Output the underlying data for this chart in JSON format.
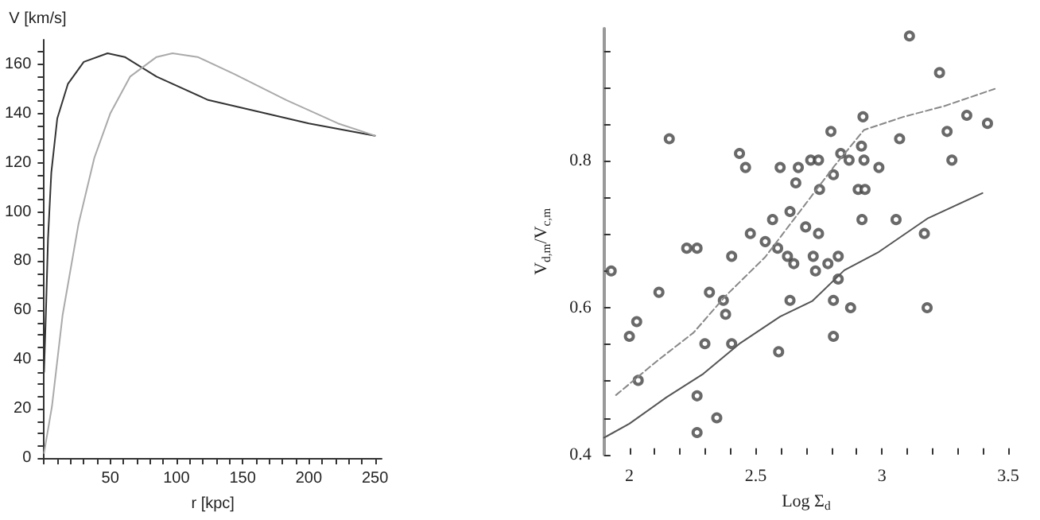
{
  "chart_data": [
    {
      "type": "line",
      "xlabel": "r [kpc]",
      "ylabel": "V [km/s]",
      "marker": "none",
      "line_style": "solid",
      "grid": false,
      "xlim": [
        0,
        255
      ],
      "ylim": [
        0,
        170
      ],
      "xticks": [
        {
          "value": 0,
          "label": null
        },
        {
          "value": 10,
          "label": null
        },
        {
          "value": 20,
          "label": null
        },
        {
          "value": 30,
          "label": null
        },
        {
          "value": 40,
          "label": null
        },
        50,
        {
          "value": 60,
          "label": null
        },
        {
          "value": 70,
          "label": null
        },
        {
          "value": 80,
          "label": null
        },
        {
          "value": 90,
          "label": null
        },
        100,
        {
          "value": 110,
          "label": null
        },
        {
          "value": 120,
          "label": null
        },
        {
          "value": 130,
          "label": null
        },
        {
          "value": 140,
          "label": null
        },
        150,
        {
          "value": 160,
          "label": null
        },
        {
          "value": 170,
          "label": null
        },
        {
          "value": 180,
          "label": null
        },
        {
          "value": 190,
          "label": null
        },
        200,
        {
          "value": 210,
          "label": null
        },
        {
          "value": 220,
          "label": null
        },
        {
          "value": 230,
          "label": null
        },
        {
          "value": 240,
          "label": null
        },
        250
      ],
      "yticks": [
        0,
        {
          "value": 5,
          "label": null
        },
        {
          "value": 10,
          "label": null
        },
        {
          "value": 15,
          "label": null
        },
        20,
        {
          "value": 25,
          "label": null
        },
        {
          "value": 30,
          "label": null
        },
        {
          "value": 35,
          "label": null
        },
        40,
        {
          "value": 45,
          "label": null
        },
        {
          "value": 50,
          "label": null
        },
        {
          "value": 55,
          "label": null
        },
        60,
        {
          "value": 65,
          "label": null
        },
        {
          "value": 70,
          "label": null
        },
        {
          "value": 75,
          "label": null
        },
        80,
        {
          "value": 85,
          "label": null
        },
        {
          "value": 90,
          "label": null
        },
        {
          "value": 95,
          "label": null
        },
        100,
        {
          "value": 105,
          "label": null
        },
        {
          "value": 110,
          "label": null
        },
        {
          "value": 115,
          "label": null
        },
        120,
        {
          "value": 125,
          "label": null
        },
        {
          "value": 130,
          "label": null
        },
        {
          "value": 135,
          "label": null
        },
        140,
        {
          "value": 145,
          "label": null
        },
        {
          "value": 150,
          "label": null
        },
        {
          "value": 155,
          "label": null
        },
        160,
        {
          "value": 165,
          "label": null
        }
      ],
      "series": [
        {
          "color": "#333333",
          "x": [
            0,
            1.6,
            3,
            5.5,
            10,
            18,
            30,
            48,
            61,
            85,
            124,
            164,
            200,
            250
          ],
          "values": [
            35,
            62,
            89,
            116,
            138,
            152,
            161,
            164.5,
            163,
            155,
            145.5,
            140.5,
            136,
            131
          ]
        },
        {
          "color": "#aaaaaa",
          "x": [
            0,
            6,
            14,
            26,
            38,
            50,
            65,
            85,
            97,
            116,
            144,
            183,
            222,
            250
          ],
          "values": [
            2,
            21,
            58,
            95,
            122,
            140,
            155,
            163,
            164.5,
            163,
            156,
            145.5,
            136,
            131
          ]
        }
      ]
    },
    {
      "type": "scatter",
      "xlabel": "Log Σ$_{d}$",
      "ylabel": "V$_{d,m}$/V$_{c,m}$",
      "grid": false,
      "xlim": [
        1.9,
        3.5
      ],
      "ylim": [
        0.4,
        0.98
      ],
      "xticks": [
        2,
        {
          "value": 2.1,
          "label": null
        },
        {
          "value": 2.2,
          "label": null
        },
        {
          "value": 2.3,
          "label": null
        },
        {
          "value": 2.4,
          "label": null
        },
        2.5,
        {
          "value": 2.6,
          "label": null
        },
        {
          "value": 2.7,
          "label": null
        },
        {
          "value": 2.8,
          "label": null
        },
        {
          "value": 2.9,
          "label": null
        },
        3,
        {
          "value": 3.1,
          "label": null
        },
        {
          "value": 3.2,
          "label": null
        },
        {
          "value": 3.3,
          "label": null
        },
        {
          "value": 3.4,
          "label": null
        },
        3.5
      ],
      "yticks": [
        0.4,
        {
          "value": 0.45,
          "label": null
        },
        {
          "value": 0.5,
          "label": null
        },
        {
          "value": 0.55,
          "label": null
        },
        0.6,
        {
          "value": 0.65,
          "label": null
        },
        {
          "value": 0.7,
          "label": null
        },
        {
          "value": 0.75,
          "label": null
        },
        0.8,
        {
          "value": 0.85,
          "label": null
        },
        {
          "value": 0.9,
          "label": null
        },
        {
          "value": 0.95,
          "label": null
        }
      ],
      "series": [
        {
          "marker": "circle",
          "color": "#444444",
          "x": [
            3.109,
            3.228,
            2.158,
            2.925,
            2.798,
            3.07,
            3.258,
            3.336,
            3.418,
            2.919,
            2.436,
            2.46,
            2.597,
            2.669,
            2.718,
            2.749,
            2.837,
            2.87,
            2.929,
            2.988,
            3.277,
            2.808,
            2.659,
            2.753,
            2.906,
            2.933,
            2.636,
            2.567,
            2.921,
            3.056,
            2.698,
            2.479,
            2.749,
            3.168,
            2.538,
            2.227,
            2.268,
            2.587,
            2.405,
            2.626,
            2.728,
            2.827,
            2.651,
            2.786,
            2.737,
            1.928,
            2.827,
            2.117,
            2.317,
            2.372,
            2.636,
            2.808,
            2.381,
            2.876,
            3.179,
            2.029,
            2.0,
            2.299,
            2.405,
            2.808,
            2.591,
            2.035,
            2.268,
            2.346,
            2.268
          ],
          "values": [
            0.97,
            0.92,
            0.83,
            0.86,
            0.84,
            0.83,
            0.84,
            0.862,
            0.851,
            0.82,
            0.81,
            0.791,
            0.791,
            0.791,
            0.801,
            0.801,
            0.81,
            0.801,
            0.801,
            0.791,
            0.801,
            0.781,
            0.77,
            0.761,
            0.761,
            0.761,
            0.731,
            0.72,
            0.72,
            0.72,
            0.71,
            0.701,
            0.701,
            0.701,
            0.69,
            0.681,
            0.681,
            0.681,
            0.67,
            0.67,
            0.67,
            0.67,
            0.66,
            0.66,
            0.65,
            0.65,
            0.639,
            0.621,
            0.621,
            0.61,
            0.61,
            0.61,
            0.591,
            0.6,
            0.6,
            0.581,
            0.561,
            0.551,
            0.551,
            0.561,
            0.54,
            0.501,
            0.48,
            0.45,
            0.43
          ]
        },
        {
          "type": "line",
          "marker": "none",
          "line_style": "solid",
          "color": "#555555",
          "x": [
            1.9,
            2.0,
            2.147,
            2.293,
            2.44,
            2.597,
            2.724,
            2.851,
            2.988,
            3.183,
            3.398
          ],
          "values": [
            0.423,
            0.442,
            0.478,
            0.51,
            0.552,
            0.588,
            0.609,
            0.651,
            0.676,
            0.722,
            0.756
          ]
        },
        {
          "type": "line",
          "marker": "none",
          "line_style": "dashed",
          "color": "#888888",
          "x": [
            1.947,
            2.108,
            2.254,
            2.381,
            2.538,
            2.655,
            2.812,
            2.929,
            3.086,
            3.242,
            3.447
          ],
          "values": [
            0.481,
            0.527,
            0.566,
            0.616,
            0.669,
            0.722,
            0.793,
            0.842,
            0.86,
            0.874,
            0.898
          ]
        }
      ]
    }
  ]
}
